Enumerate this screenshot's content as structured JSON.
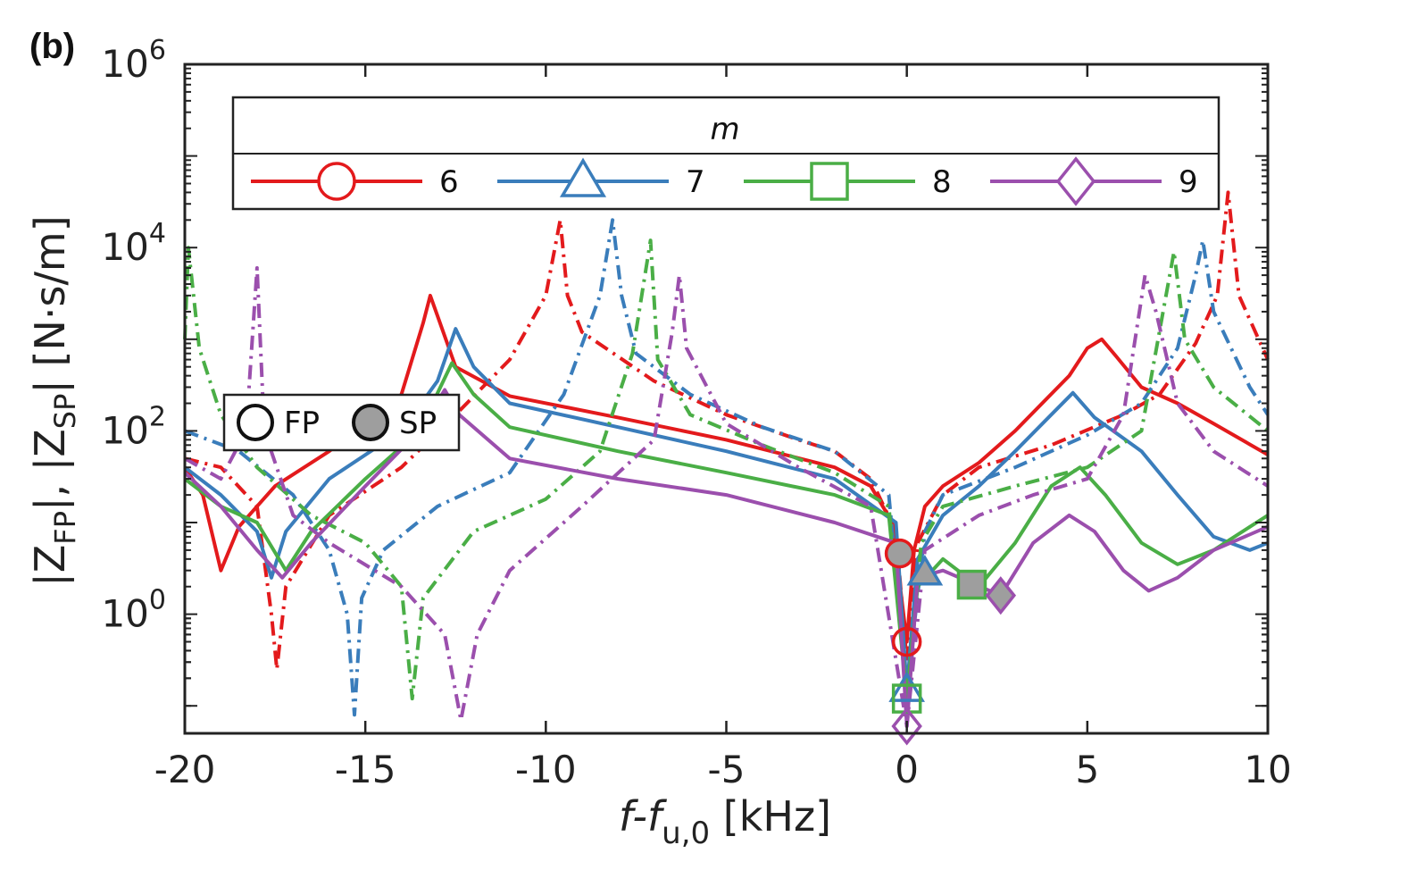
{
  "panel_label": "(b)",
  "chart_data": {
    "type": "line",
    "title": "",
    "xlabel": {
      "main": "f-f",
      "sub": "u,0",
      "unit": " [kHz]"
    },
    "ylabel": {
      "p1": "|Z",
      "s1": "FP",
      "p2": "|, |Z",
      "s2": "SP",
      "p3": "| [N·s/m]"
    },
    "xlim": [
      -20,
      10
    ],
    "ylim_log10": [
      -1.3,
      6
    ],
    "y_scale": "log",
    "x_ticks": [
      -20,
      -15,
      -10,
      -5,
      0,
      5,
      10
    ],
    "x_tick_labels": [
      "-20",
      "-15",
      "-10",
      "-5",
      "0",
      "5",
      "10"
    ],
    "y_ticks": [
      {
        "base": "10",
        "exp": "0",
        "log": 0
      },
      {
        "base": "10",
        "exp": "2",
        "log": 2
      },
      {
        "base": "10",
        "exp": "4",
        "log": 4
      },
      {
        "base": "10",
        "exp": "6",
        "log": 6
      }
    ],
    "legend_title": "m",
    "series": [
      {
        "name": "6",
        "color": "#e31a1c",
        "marker": "circle",
        "fp_marker": [
          0,
          0.5
        ],
        "sp_marker": [
          -0.2,
          4.6
        ],
        "fp_curve": [
          [
            -20,
            40
          ],
          [
            -19.5,
            20
          ],
          [
            -19,
            3
          ],
          [
            -18.5,
            9
          ],
          [
            -17.5,
            25
          ],
          [
            -16,
            60
          ],
          [
            -14,
            250
          ],
          [
            -13.4,
            1500
          ],
          [
            -13.2,
            3000
          ],
          [
            -13,
            1800
          ],
          [
            -12.5,
            500
          ],
          [
            -11,
            240
          ],
          [
            -8,
            140
          ],
          [
            -5,
            80
          ],
          [
            -2,
            40
          ],
          [
            -1,
            25
          ],
          [
            -0.4,
            10
          ],
          [
            0,
            0.5
          ],
          [
            0.2,
            5
          ],
          [
            0.5,
            15
          ],
          [
            1,
            25
          ],
          [
            2,
            45
          ],
          [
            3,
            100
          ],
          [
            4.5,
            400
          ],
          [
            5,
            800
          ],
          [
            5.4,
            1000
          ],
          [
            5.8,
            650
          ],
          [
            6.5,
            300
          ],
          [
            7.5,
            200
          ],
          [
            8.5,
            120
          ],
          [
            10,
            55
          ]
        ],
        "sp_curve": [
          [
            -20,
            50
          ],
          [
            -19,
            40
          ],
          [
            -18,
            15
          ],
          [
            -17.6,
            1
          ],
          [
            -17.45,
            0.25
          ],
          [
            -17.2,
            2
          ],
          [
            -16,
            12
          ],
          [
            -14,
            40
          ],
          [
            -12.5,
            150
          ],
          [
            -11,
            600
          ],
          [
            -10,
            3000
          ],
          [
            -9.6,
            20000
          ],
          [
            -9.4,
            3000
          ],
          [
            -9,
            1200
          ],
          [
            -7,
            350
          ],
          [
            -5,
            150
          ],
          [
            -3,
            80
          ],
          [
            -2,
            60
          ],
          [
            -1,
            30
          ],
          [
            -0.3,
            8
          ],
          [
            0,
            0.3
          ],
          [
            0.3,
            6
          ],
          [
            1,
            20
          ],
          [
            2,
            40
          ],
          [
            4,
            70
          ],
          [
            6,
            150
          ],
          [
            7,
            250
          ],
          [
            8,
            900
          ],
          [
            8.6,
            3000
          ],
          [
            8.9,
            40000
          ],
          [
            9.2,
            3000
          ],
          [
            10,
            600
          ]
        ]
      },
      {
        "name": "7",
        "color": "#3a7dbb",
        "marker": "triangle",
        "fp_marker": [
          0,
          0.15
        ],
        "sp_marker": [
          0.5,
          2.8
        ],
        "fp_curve": [
          [
            -20,
            40
          ],
          [
            -19,
            20
          ],
          [
            -18,
            8
          ],
          [
            -17.6,
            2.5
          ],
          [
            -17.2,
            8
          ],
          [
            -16,
            30
          ],
          [
            -14,
            100
          ],
          [
            -13,
            350
          ],
          [
            -12.5,
            1300
          ],
          [
            -12,
            500
          ],
          [
            -11,
            200
          ],
          [
            -8,
            110
          ],
          [
            -5,
            60
          ],
          [
            -2,
            30
          ],
          [
            -0.3,
            10
          ],
          [
            0,
            0.15
          ],
          [
            0.3,
            4
          ],
          [
            1,
            12
          ],
          [
            2,
            25
          ],
          [
            3,
            60
          ],
          [
            4,
            150
          ],
          [
            4.6,
            260
          ],
          [
            5.2,
            140
          ],
          [
            6.5,
            60
          ],
          [
            7.5,
            20
          ],
          [
            8.5,
            7
          ],
          [
            9.5,
            5
          ],
          [
            10,
            6
          ]
        ],
        "sp_curve": [
          [
            -20,
            100
          ],
          [
            -18.5,
            60
          ],
          [
            -17,
            20
          ],
          [
            -16,
            5
          ],
          [
            -15.5,
            1
          ],
          [
            -15.3,
            0.08
          ],
          [
            -15.1,
            1.5
          ],
          [
            -14.5,
            5
          ],
          [
            -13,
            15
          ],
          [
            -11,
            35
          ],
          [
            -9.5,
            250
          ],
          [
            -8.5,
            3000
          ],
          [
            -8.15,
            20000
          ],
          [
            -7.9,
            3000
          ],
          [
            -7.5,
            700
          ],
          [
            -6,
            250
          ],
          [
            -4,
            110
          ],
          [
            -2,
            60
          ],
          [
            -0.5,
            20
          ],
          [
            0,
            0.15
          ],
          [
            0.5,
            8
          ],
          [
            1,
            20
          ],
          [
            3,
            40
          ],
          [
            5,
            90
          ],
          [
            6.5,
            200
          ],
          [
            7.5,
            800
          ],
          [
            8,
            5000
          ],
          [
            8.2,
            12000
          ],
          [
            8.5,
            2000
          ],
          [
            9.5,
            300
          ],
          [
            10,
            150
          ]
        ]
      },
      {
        "name": "8",
        "color": "#4aae46",
        "marker": "square",
        "fp_marker": [
          0,
          0.12
        ],
        "sp_marker": [
          1.8,
          2.1
        ],
        "fp_curve": [
          [
            -20,
            30
          ],
          [
            -19,
            15
          ],
          [
            -18,
            10
          ],
          [
            -17.2,
            3
          ],
          [
            -16.5,
            8
          ],
          [
            -15,
            30
          ],
          [
            -13.5,
            100
          ],
          [
            -12.6,
            550
          ],
          [
            -12,
            250
          ],
          [
            -11,
            110
          ],
          [
            -8,
            60
          ],
          [
            -5,
            35
          ],
          [
            -2,
            20
          ],
          [
            -0.5,
            12
          ],
          [
            0,
            0.12
          ],
          [
            0.3,
            2
          ],
          [
            1,
            4
          ],
          [
            2,
            2
          ],
          [
            3,
            6
          ],
          [
            4,
            25
          ],
          [
            4.8,
            40
          ],
          [
            5.5,
            20
          ],
          [
            6.5,
            6
          ],
          [
            7.5,
            3.5
          ],
          [
            8.5,
            5
          ],
          [
            10,
            12
          ]
        ],
        "sp_curve": [
          [
            -20,
            1000
          ],
          [
            -19.9,
            10000
          ],
          [
            -19.6,
            800
          ],
          [
            -19,
            150
          ],
          [
            -18,
            40
          ],
          [
            -16.5,
            12
          ],
          [
            -15,
            6
          ],
          [
            -14,
            2
          ],
          [
            -13.7,
            0.12
          ],
          [
            -13.4,
            1.5
          ],
          [
            -12,
            8
          ],
          [
            -10,
            18
          ],
          [
            -8.5,
            60
          ],
          [
            -7.6,
            700
          ],
          [
            -7.1,
            12000
          ],
          [
            -6.9,
            600
          ],
          [
            -6,
            150
          ],
          [
            -4,
            70
          ],
          [
            -2,
            35
          ],
          [
            -0.5,
            15
          ],
          [
            0,
            0.12
          ],
          [
            0.4,
            6
          ],
          [
            1,
            15
          ],
          [
            3,
            25
          ],
          [
            5,
            40
          ],
          [
            6.5,
            100
          ],
          [
            7.1,
            2000
          ],
          [
            7.4,
            9000
          ],
          [
            7.7,
            1000
          ],
          [
            8.5,
            300
          ],
          [
            10,
            100
          ]
        ]
      },
      {
        "name": "9",
        "color": "#9b4fad",
        "marker": "diamond",
        "fp_marker": [
          0,
          0.06
        ],
        "sp_marker": [
          2.6,
          1.6
        ],
        "fp_curve": [
          [
            -20,
            35
          ],
          [
            -19,
            15
          ],
          [
            -18,
            5
          ],
          [
            -17.3,
            2.5
          ],
          [
            -16.5,
            6
          ],
          [
            -15,
            25
          ],
          [
            -13.5,
            100
          ],
          [
            -12.8,
            280
          ],
          [
            -12.4,
            150
          ],
          [
            -11,
            50
          ],
          [
            -8,
            30
          ],
          [
            -5,
            20
          ],
          [
            -2,
            10
          ],
          [
            -0.3,
            6
          ],
          [
            0,
            0.06
          ],
          [
            0.3,
            2.5
          ],
          [
            1,
            3
          ],
          [
            2.6,
            1.6
          ],
          [
            3.5,
            6
          ],
          [
            4.5,
            12
          ],
          [
            5.2,
            8
          ],
          [
            6,
            3
          ],
          [
            6.7,
            1.8
          ],
          [
            7.5,
            2.5
          ],
          [
            8.5,
            5
          ],
          [
            10,
            9
          ]
        ],
        "sp_curve": [
          [
            -20,
            50
          ],
          [
            -19,
            30
          ],
          [
            -18.3,
            100
          ],
          [
            -18,
            6000
          ],
          [
            -17.8,
            100
          ],
          [
            -17,
            12
          ],
          [
            -16,
            6
          ],
          [
            -14,
            2
          ],
          [
            -12.8,
            0.6
          ],
          [
            -12.35,
            0.07
          ],
          [
            -11.9,
            0.6
          ],
          [
            -11,
            3
          ],
          [
            -9,
            15
          ],
          [
            -7,
            80
          ],
          [
            -6.5,
            1200
          ],
          [
            -6.3,
            5000
          ],
          [
            -6.1,
            800
          ],
          [
            -5,
            120
          ],
          [
            -3,
            40
          ],
          [
            -1,
            15
          ],
          [
            0,
            0.06
          ],
          [
            0.5,
            5
          ],
          [
            2,
            12
          ],
          [
            3.5,
            20
          ],
          [
            5,
            30
          ],
          [
            6,
            150
          ],
          [
            6.6,
            5000
          ],
          [
            6.9,
            2000
          ],
          [
            7.5,
            200
          ],
          [
            8.5,
            60
          ],
          [
            10,
            25
          ]
        ]
      }
    ],
    "marker_legend": [
      {
        "label": "FP",
        "fill": "none"
      },
      {
        "label": "SP",
        "fill": "#9e9e9e"
      }
    ]
  }
}
